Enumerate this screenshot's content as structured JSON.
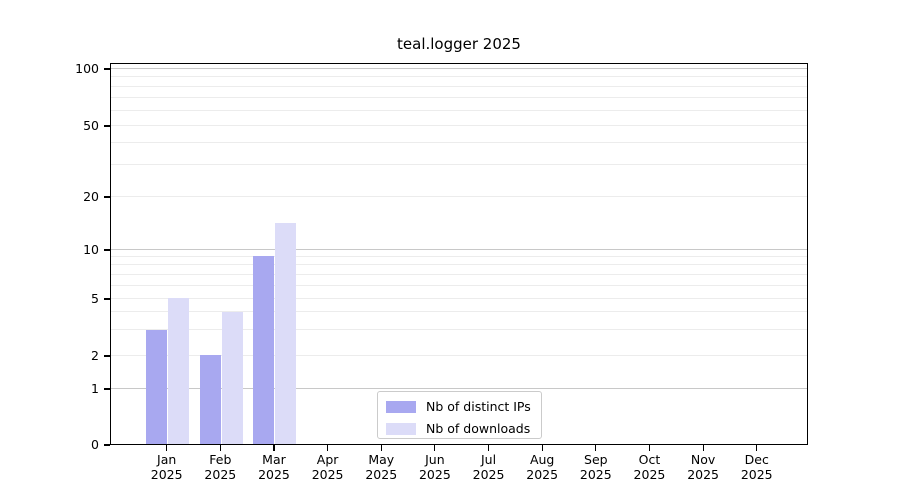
{
  "title": "teal.logger 2025",
  "colors": {
    "bar_distinct_ips": "#a8a8f0",
    "bar_downloads": "#dcdcf8",
    "grid_major": "#c8c8c8",
    "grid_minor": "#ececec",
    "axis_line": "#000000",
    "legend_border": "#cbcbcb",
    "background": "#ffffff"
  },
  "chart_data": {
    "type": "bar",
    "title": "teal.logger 2025",
    "x_categories": [
      {
        "month": "Jan",
        "year": "2025"
      },
      {
        "month": "Feb",
        "year": "2025"
      },
      {
        "month": "Mar",
        "year": "2025"
      },
      {
        "month": "Apr",
        "year": "2025"
      },
      {
        "month": "May",
        "year": "2025"
      },
      {
        "month": "Jun",
        "year": "2025"
      },
      {
        "month": "Jul",
        "year": "2025"
      },
      {
        "month": "Aug",
        "year": "2025"
      },
      {
        "month": "Sep",
        "year": "2025"
      },
      {
        "month": "Oct",
        "year": "2025"
      },
      {
        "month": "Nov",
        "year": "2025"
      },
      {
        "month": "Dec",
        "year": "2025"
      }
    ],
    "series": [
      {
        "name": "Nb of distinct IPs",
        "color": "#a8a8f0",
        "values": [
          3,
          2,
          9,
          0,
          0,
          0,
          0,
          0,
          0,
          0,
          0,
          0
        ]
      },
      {
        "name": "Nb of downloads",
        "color": "#dcdcf8",
        "values": [
          5,
          4,
          14,
          0,
          0,
          0,
          0,
          0,
          0,
          0,
          0,
          0
        ]
      }
    ],
    "y_axis": {
      "scale": "symlog-like",
      "ticks": [
        0,
        1,
        2,
        5,
        10,
        20,
        50,
        100
      ],
      "range": [
        0,
        120
      ]
    },
    "grid": {
      "major_values": [
        1,
        10,
        100
      ],
      "minor_values": [
        2,
        3,
        4,
        5,
        6,
        7,
        8,
        9,
        20,
        30,
        40,
        50,
        60,
        70,
        80,
        90
      ]
    },
    "legend": {
      "position": "lower-center-inside"
    }
  }
}
